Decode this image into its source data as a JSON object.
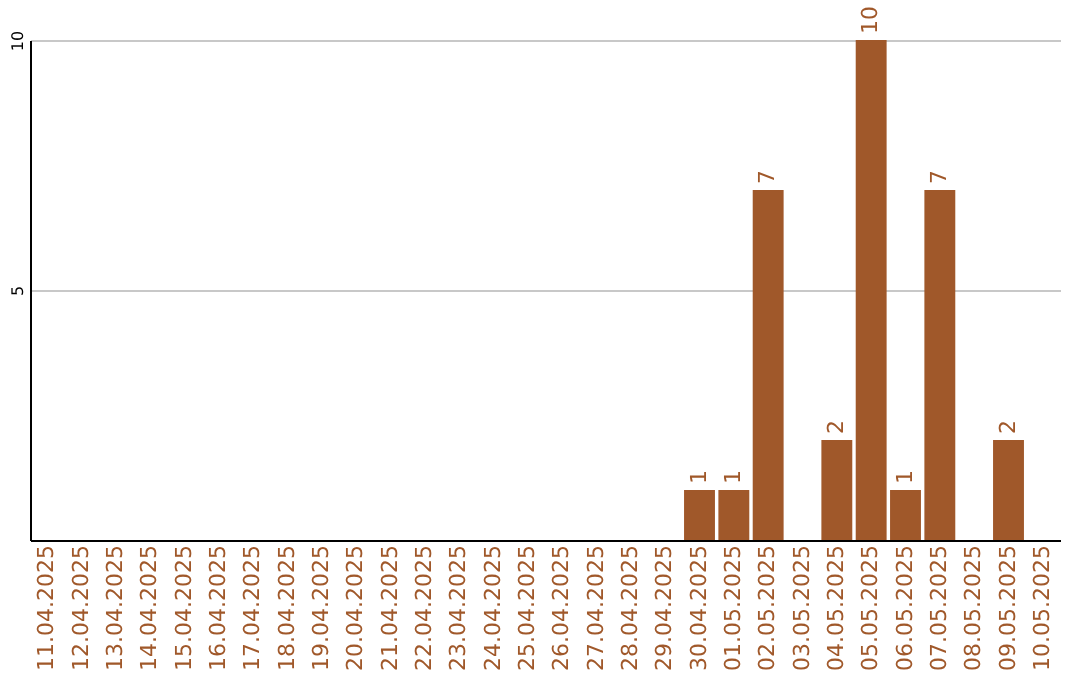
{
  "chart_data": {
    "type": "bar",
    "categories": [
      "11.04.2025",
      "12.04.2025",
      "13.04.2025",
      "14.04.2025",
      "15.04.2025",
      "16.04.2025",
      "17.04.2025",
      "18.04.2025",
      "19.04.2025",
      "20.04.2025",
      "21.04.2025",
      "22.04.2025",
      "23.04.2025",
      "24.04.2025",
      "25.04.2025",
      "26.04.2025",
      "27.04.2025",
      "28.04.2025",
      "29.04.2025",
      "30.04.2025",
      "01.05.2025",
      "02.05.2025",
      "03.05.2025",
      "04.05.2025",
      "05.05.2025",
      "06.05.2025",
      "07.05.2025",
      "08.05.2025",
      "09.05.2025",
      "10.05.2025"
    ],
    "values": [
      null,
      null,
      null,
      null,
      null,
      null,
      null,
      null,
      null,
      null,
      null,
      null,
      null,
      null,
      null,
      null,
      null,
      null,
      null,
      1,
      1,
      7,
      null,
      2,
      10,
      1,
      7,
      null,
      2,
      null
    ],
    "color": "#a0582a",
    "ylim": [
      0,
      10
    ],
    "yticks": [
      5,
      10
    ],
    "grid": "y",
    "data_labels": true
  }
}
